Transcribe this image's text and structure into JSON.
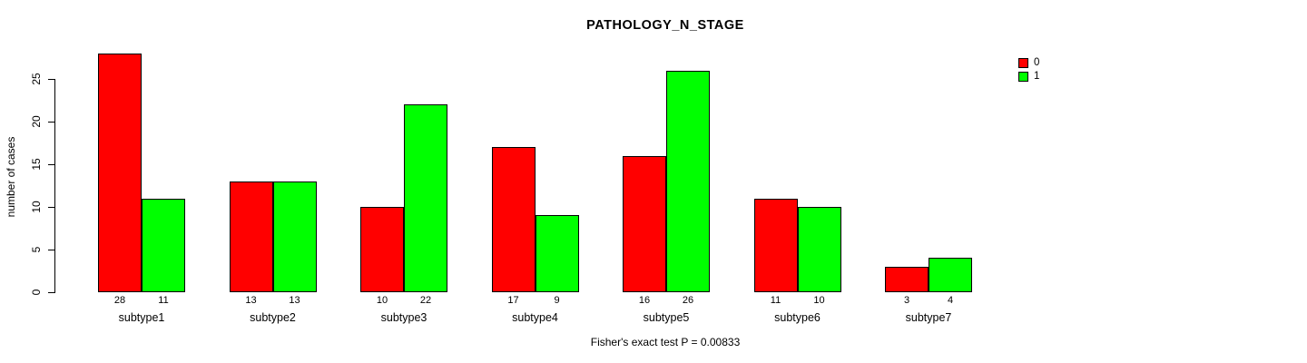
{
  "chart_data": {
    "type": "bar",
    "title": "PATHOLOGY_N_STAGE",
    "ylabel": "number of cases",
    "xlabel": "",
    "categories": [
      "subtype1",
      "subtype2",
      "subtype3",
      "subtype4",
      "subtype5",
      "subtype6",
      "subtype7"
    ],
    "series": [
      {
        "name": "0",
        "color": "#FF0000",
        "values": [
          28,
          13,
          10,
          17,
          16,
          11,
          3
        ]
      },
      {
        "name": "1",
        "color": "#00FF00",
        "values": [
          11,
          13,
          22,
          9,
          26,
          10,
          4
        ]
      }
    ],
    "yticks": [
      0,
      5,
      10,
      15,
      20,
      25
    ],
    "ylim": [
      0,
      28
    ],
    "bar_value_labels": [
      [
        28,
        11
      ],
      [
        13,
        13
      ],
      [
        10,
        22
      ],
      [
        17,
        9
      ],
      [
        16,
        26
      ],
      [
        11,
        10
      ],
      [
        3,
        4
      ]
    ],
    "annotation": "Fisher's exact test P = 0.00833",
    "legend_position": "top-right",
    "legend_entries": [
      "0",
      "1"
    ],
    "grid": false,
    "background_color": "#FFFFFF",
    "axis_color": "#000000"
  }
}
